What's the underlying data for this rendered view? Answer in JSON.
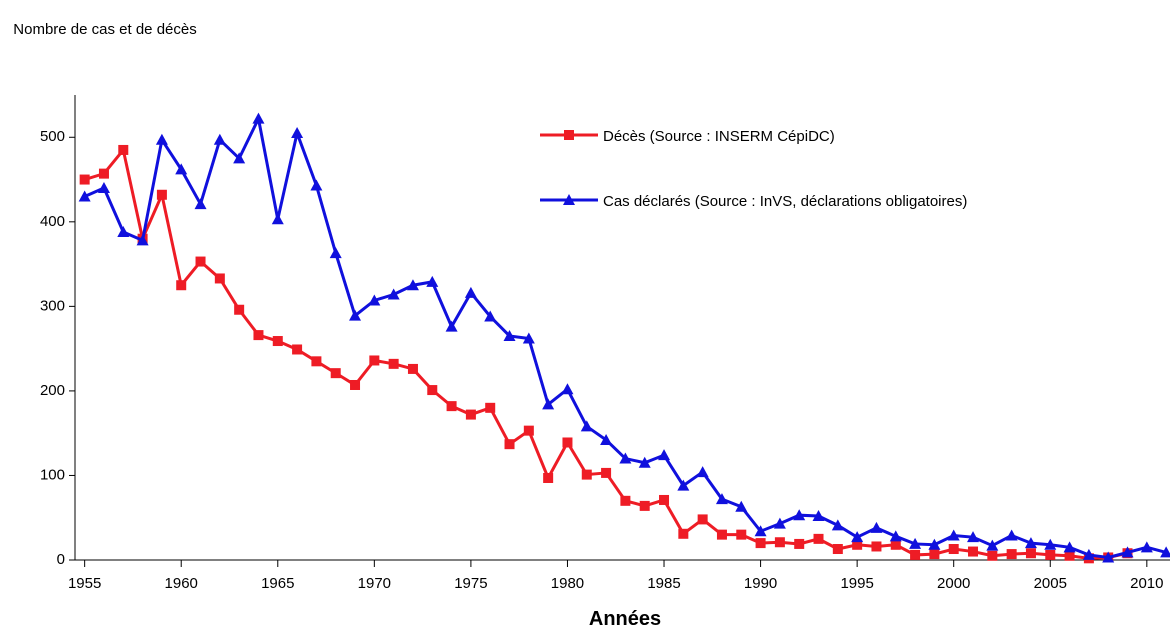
{
  "chart_data": {
    "type": "line",
    "y_label": "Nombre de cas et de décès",
    "x_label": "Années",
    "x": [
      1955,
      1956,
      1957,
      1958,
      1959,
      1960,
      1961,
      1962,
      1963,
      1964,
      1965,
      1966,
      1967,
      1968,
      1969,
      1970,
      1971,
      1972,
      1973,
      1974,
      1975,
      1976,
      1977,
      1978,
      1979,
      1980,
      1981,
      1982,
      1983,
      1984,
      1985,
      1986,
      1987,
      1988,
      1989,
      1990,
      1991,
      1992,
      1993,
      1994,
      1995,
      1996,
      1997,
      1998,
      1999,
      2000,
      2001,
      2002,
      2003,
      2004,
      2005,
      2006,
      2007,
      2008,
      2009,
      2010,
      2011
    ],
    "series": [
      {
        "name": "Décès (Source : INSERM CépiDC)",
        "color": "#ee1c25",
        "marker": "square",
        "values": [
          450,
          457,
          485,
          380,
          432,
          325,
          353,
          333,
          296,
          266,
          259,
          249,
          235,
          221,
          207,
          236,
          232,
          226,
          201,
          182,
          172,
          180,
          137,
          153,
          97,
          139,
          101,
          103,
          70,
          64,
          71,
          31,
          48,
          30,
          30,
          20,
          21,
          19,
          25,
          13,
          18,
          16,
          18,
          6,
          7,
          13,
          10,
          5,
          7,
          8,
          6,
          5,
          2,
          3,
          8,
          null,
          null
        ]
      },
      {
        "name": "Cas déclarés (Source : InVS, déclarations obligatoires)",
        "color": "#1010dd",
        "marker": "triangle",
        "values": [
          430,
          440,
          388,
          378,
          497,
          462,
          421,
          497,
          475,
          522,
          403,
          505,
          443,
          363,
          289,
          307,
          314,
          325,
          329,
          276,
          316,
          288,
          265,
          262,
          184,
          202,
          158,
          142,
          120,
          115,
          124,
          88,
          104,
          72,
          63,
          34,
          43,
          53,
          52,
          41,
          27,
          38,
          28,
          19,
          18,
          29,
          27,
          17,
          29,
          20,
          18,
          15,
          6,
          3,
          9,
          15,
          9
        ]
      }
    ],
    "xlim": [
      1954.5,
      2011.2
    ],
    "xticks": [
      1955,
      1960,
      1965,
      1970,
      1975,
      1980,
      1985,
      1990,
      1995,
      2000,
      2005,
      2010
    ],
    "ylim": [
      0,
      550
    ],
    "yticks": [
      0,
      100,
      200,
      300,
      400,
      500
    ],
    "grid": false
  }
}
